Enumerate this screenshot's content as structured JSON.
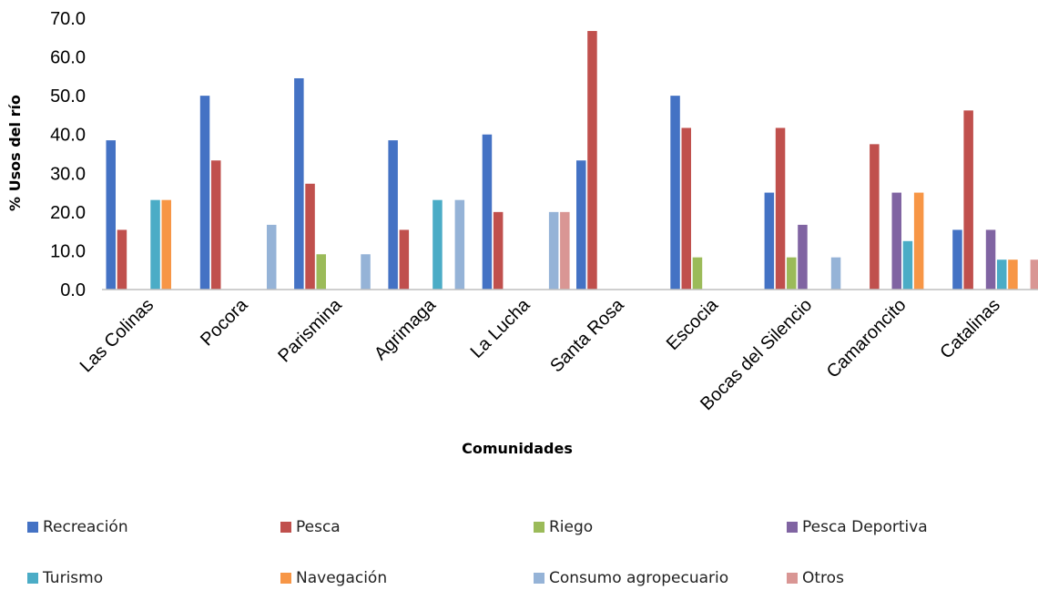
{
  "chart_data": {
    "type": "bar",
    "title": "",
    "xlabel": "Comunidades",
    "ylabel": "% Usos del río",
    "ylim": [
      0,
      70
    ],
    "yticks": [
      "0.0",
      "10.0",
      "20.0",
      "30.0",
      "40.0",
      "50.0",
      "60.0",
      "70.0"
    ],
    "grid": false,
    "legend_position": "bottom",
    "categories": [
      "Las Colinas",
      "Pocora",
      "Parismina",
      "Agrimaga",
      "La Lucha",
      "Santa Rosa",
      "Escocia",
      "Bocas del Silencio",
      "Camaroncito",
      "Catalinas"
    ],
    "series": [
      {
        "name": "Recreación",
        "color": "#4472C4",
        "values": [
          38.5,
          50.0,
          54.5,
          38.5,
          40.0,
          33.3,
          50.0,
          25.0,
          0,
          15.4
        ]
      },
      {
        "name": "Pesca",
        "color": "#C0504D",
        "values": [
          15.4,
          33.3,
          27.3,
          15.4,
          20.0,
          66.7,
          41.7,
          41.7,
          37.5,
          46.2
        ]
      },
      {
        "name": "Riego",
        "color": "#9BBB59",
        "values": [
          0,
          0,
          9.1,
          0,
          0,
          0,
          8.3,
          8.3,
          0,
          0
        ]
      },
      {
        "name": "Pesca Deportiva",
        "color": "#8064A2",
        "values": [
          0,
          0,
          0,
          0,
          0,
          0,
          0,
          16.7,
          25.0,
          15.4
        ]
      },
      {
        "name": "Turismo",
        "color": "#4BACC6",
        "values": [
          23.1,
          0,
          0,
          23.1,
          0,
          0,
          0,
          0,
          12.5,
          7.7
        ]
      },
      {
        "name": "Navegación",
        "color": "#F79646",
        "values": [
          23.1,
          0,
          0,
          0,
          0,
          0,
          0,
          0,
          25.0,
          7.7
        ]
      },
      {
        "name": "Consumo agropecuario",
        "color": "#95B3D7",
        "values": [
          0,
          16.7,
          9.1,
          23.1,
          20.0,
          0,
          0,
          8.3,
          0,
          0
        ]
      },
      {
        "name": "Otros",
        "color": "#D99694",
        "values": [
          0,
          0,
          0,
          0,
          20.0,
          0,
          0,
          0,
          0,
          7.7
        ]
      }
    ]
  }
}
